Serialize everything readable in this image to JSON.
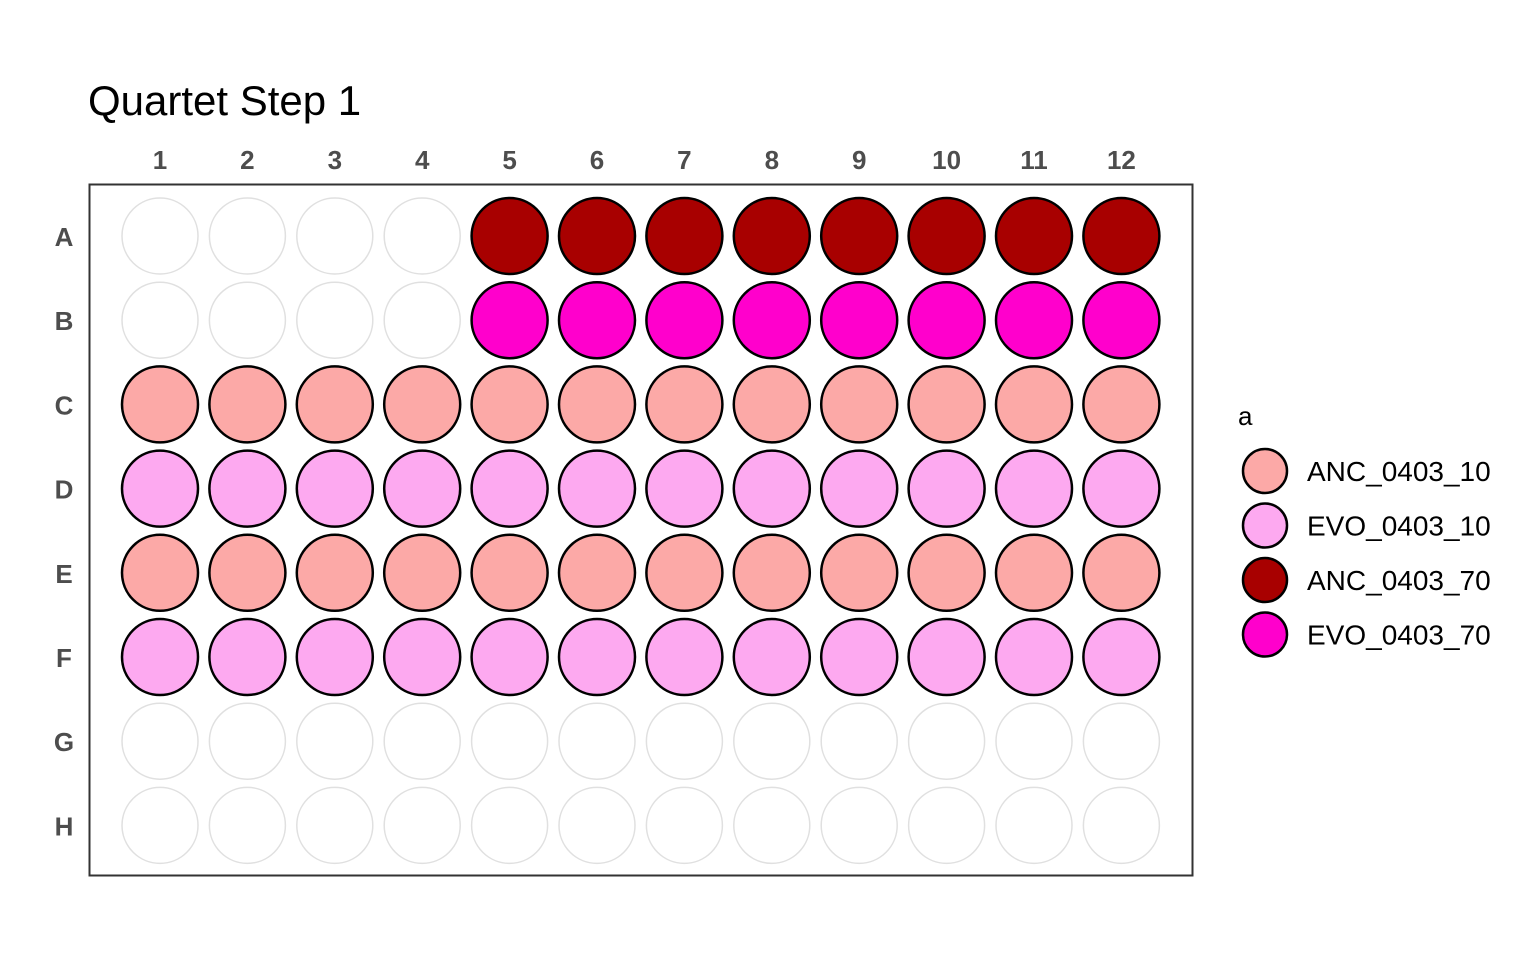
{
  "chart_data": {
    "type": "plate-map",
    "title": "Quartet Step 1",
    "columns": [
      "1",
      "2",
      "3",
      "4",
      "5",
      "6",
      "7",
      "8",
      "9",
      "10",
      "11",
      "12"
    ],
    "rows": [
      "A",
      "B",
      "C",
      "D",
      "E",
      "F",
      "G",
      "H"
    ],
    "legend": {
      "title": "a",
      "entries": [
        {
          "label": "ANC_0403_10",
          "color": "#FCA9A7"
        },
        {
          "label": "EVO_0403_10",
          "color": "#FDA9F0"
        },
        {
          "label": "ANC_0403_70",
          "color": "#A80000"
        },
        {
          "label": "EVO_0403_70",
          "color": "#FF00CC"
        }
      ]
    },
    "empty_well_color": "#E0E0E0",
    "wells": {
      "A": [
        null,
        null,
        null,
        null,
        "ANC_0403_70",
        "ANC_0403_70",
        "ANC_0403_70",
        "ANC_0403_70",
        "ANC_0403_70",
        "ANC_0403_70",
        "ANC_0403_70",
        "ANC_0403_70"
      ],
      "B": [
        null,
        null,
        null,
        null,
        "EVO_0403_70",
        "EVO_0403_70",
        "EVO_0403_70",
        "EVO_0403_70",
        "EVO_0403_70",
        "EVO_0403_70",
        "EVO_0403_70",
        "EVO_0403_70"
      ],
      "C": [
        "ANC_0403_10",
        "ANC_0403_10",
        "ANC_0403_10",
        "ANC_0403_10",
        "ANC_0403_10",
        "ANC_0403_10",
        "ANC_0403_10",
        "ANC_0403_10",
        "ANC_0403_10",
        "ANC_0403_10",
        "ANC_0403_10",
        "ANC_0403_10"
      ],
      "D": [
        "EVO_0403_10",
        "EVO_0403_10",
        "EVO_0403_10",
        "EVO_0403_10",
        "EVO_0403_10",
        "EVO_0403_10",
        "EVO_0403_10",
        "EVO_0403_10",
        "EVO_0403_10",
        "EVO_0403_10",
        "EVO_0403_10",
        "EVO_0403_10"
      ],
      "E": [
        "ANC_0403_10",
        "ANC_0403_10",
        "ANC_0403_10",
        "ANC_0403_10",
        "ANC_0403_10",
        "ANC_0403_10",
        "ANC_0403_10",
        "ANC_0403_10",
        "ANC_0403_10",
        "ANC_0403_10",
        "ANC_0403_10",
        "ANC_0403_10"
      ],
      "F": [
        "EVO_0403_10",
        "EVO_0403_10",
        "EVO_0403_10",
        "EVO_0403_10",
        "EVO_0403_10",
        "EVO_0403_10",
        "EVO_0403_10",
        "EVO_0403_10",
        "EVO_0403_10",
        "EVO_0403_10",
        "EVO_0403_10",
        "EVO_0403_10"
      ],
      "G": [
        null,
        null,
        null,
        null,
        null,
        null,
        null,
        null,
        null,
        null,
        null,
        null
      ],
      "H": [
        null,
        null,
        null,
        null,
        null,
        null,
        null,
        null,
        null,
        null,
        null,
        null
      ]
    }
  }
}
